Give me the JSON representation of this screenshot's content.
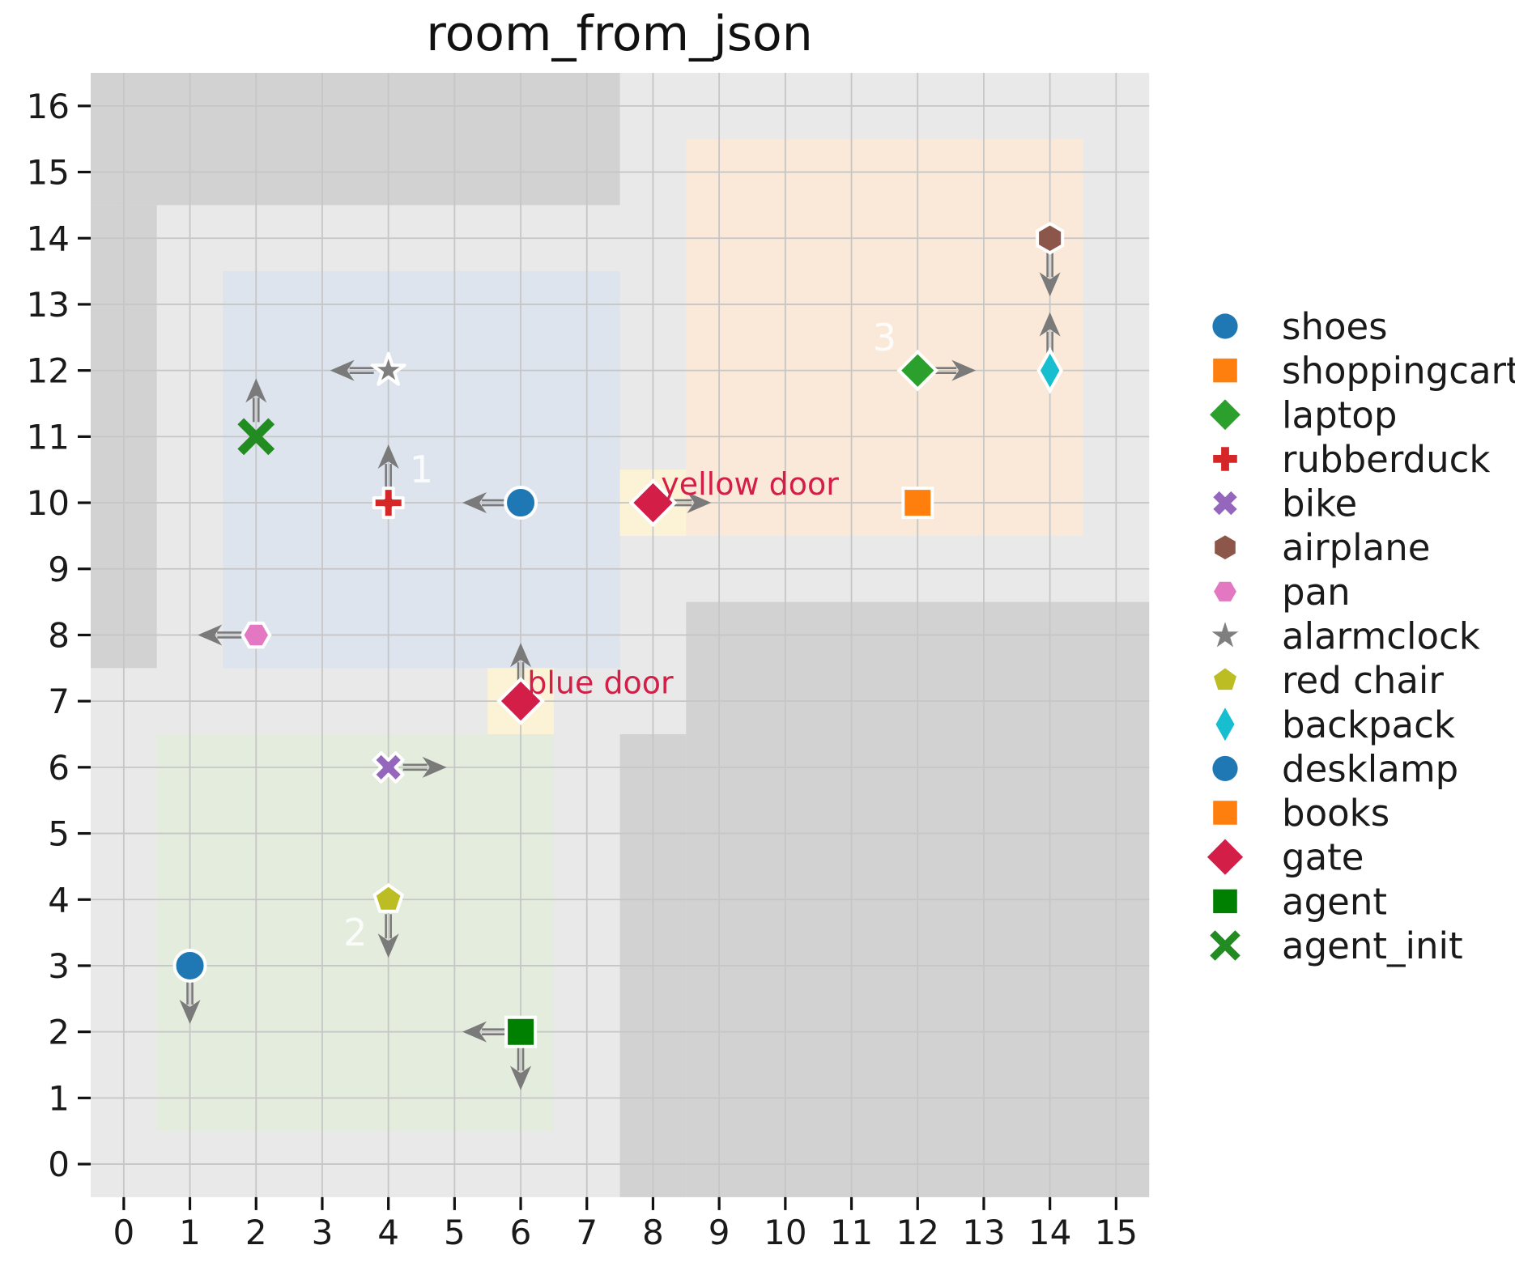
{
  "chart_data": {
    "type": "scatter",
    "title": "room_from_json",
    "xlim": [
      -0.5,
      15.5
    ],
    "ylim": [
      -0.5,
      16.5
    ],
    "xticks": [
      0,
      1,
      2,
      3,
      4,
      5,
      6,
      7,
      8,
      9,
      10,
      11,
      12,
      13,
      14,
      15
    ],
    "yticks": [
      0,
      1,
      2,
      3,
      4,
      5,
      6,
      7,
      8,
      9,
      10,
      11,
      12,
      13,
      14,
      15,
      16
    ],
    "grid": true,
    "legend_position": "right",
    "colors": {
      "background": "#e9e9e9",
      "wall": "#d2d2d2",
      "grid": "#c6c6c6",
      "tick": "#111111",
      "arrow": "#7a7a7a",
      "room_label": "#ffffff",
      "marker_edge": "#ffffff"
    },
    "walls": [
      {
        "x0": -0.5,
        "y0": 14.5,
        "x1": 7.5,
        "y1": 16.5
      },
      {
        "x0": -0.5,
        "y0": 7.5,
        "x1": 0.5,
        "y1": 14.5
      },
      {
        "x0": 8.5,
        "y0": -0.5,
        "x1": 15.5,
        "y1": 8.5
      },
      {
        "x0": 7.5,
        "y0": -0.5,
        "x1": 8.5,
        "y1": 6.5
      }
    ],
    "rooms": [
      {
        "id": "1",
        "label": "1",
        "x0": 1.5,
        "y0": 7.5,
        "x1": 7.5,
        "y1": 13.5,
        "color": "#dde4ee",
        "label_x": 4.5,
        "label_y": 10.5
      },
      {
        "id": "2",
        "label": "2",
        "x0": 0.5,
        "y0": 0.5,
        "x1": 6.5,
        "y1": 6.5,
        "color": "#e3ecdd",
        "label_x": 3.5,
        "label_y": 3.5
      },
      {
        "id": "3",
        "label": "3",
        "x0": 8.5,
        "y0": 9.5,
        "x1": 14.5,
        "y1": 15.5,
        "color": "#fae9d8",
        "label_x": 11.5,
        "label_y": 12.5
      }
    ],
    "door_cells": [
      {
        "x0": 7.5,
        "y0": 9.5,
        "x1": 8.5,
        "y1": 10.5,
        "color": "#fcf3d7"
      },
      {
        "x0": 5.5,
        "y0": 6.5,
        "x1": 6.5,
        "y1": 7.5,
        "color": "#fcf3d7"
      }
    ],
    "door_labels": [
      {
        "text": "yellow door",
        "x": 8.12,
        "y": 10.28,
        "color": "#d31f48"
      },
      {
        "text": "blue door",
        "x": 6.1,
        "y": 7.28,
        "color": "#d31f48"
      }
    ],
    "points": [
      {
        "name": "alarmclock",
        "x": 4,
        "y": 12,
        "marker": "star",
        "color": "#7f7f7f",
        "arrows": [
          "left"
        ]
      },
      {
        "name": "agent_init",
        "x": 2,
        "y": 11,
        "marker": "x-stroke",
        "color": "#228B22",
        "arrows": [
          "up"
        ]
      },
      {
        "name": "rubberduck",
        "x": 4,
        "y": 10,
        "marker": "plus",
        "color": "#d62728",
        "arrows": [
          "up"
        ]
      },
      {
        "name": "shoes",
        "x": 6,
        "y": 10,
        "marker": "circle",
        "color": "#1f77b4",
        "arrows": [
          "left"
        ]
      },
      {
        "name": "gate-yellow-door",
        "x": 8,
        "y": 10,
        "marker": "diamond-large",
        "color": "#d31f48",
        "arrows": [
          "right"
        ]
      },
      {
        "name": "books",
        "x": 12,
        "y": 10,
        "marker": "square",
        "color": "#ff7f0e",
        "arrows": []
      },
      {
        "name": "laptop",
        "x": 12,
        "y": 12,
        "marker": "diamond",
        "color": "#2ca02c",
        "arrows": [
          "right"
        ]
      },
      {
        "name": "backpack",
        "x": 14,
        "y": 12,
        "marker": "thin-diamond",
        "color": "#17becf",
        "arrows": [
          "up"
        ]
      },
      {
        "name": "airplane",
        "x": 14,
        "y": 14,
        "marker": "hexagon-pointy",
        "color": "#8c564b",
        "arrows": [
          "down"
        ]
      },
      {
        "name": "pan",
        "x": 2,
        "y": 8,
        "marker": "hexagon-flat",
        "color": "#e377c2",
        "arrows": [
          "left"
        ]
      },
      {
        "name": "gate-blue-door",
        "x": 6,
        "y": 7,
        "marker": "diamond-large",
        "color": "#d31f48",
        "arrows": [
          "up"
        ]
      },
      {
        "name": "bike",
        "x": 4,
        "y": 6,
        "marker": "x",
        "color": "#9467bd",
        "arrows": [
          "right"
        ]
      },
      {
        "name": "red chair",
        "x": 4,
        "y": 4,
        "marker": "pentagon",
        "color": "#bcbd22",
        "arrows": [
          "down"
        ]
      },
      {
        "name": "desklamp",
        "x": 1,
        "y": 3,
        "marker": "circle",
        "color": "#1f77b4",
        "arrows": [
          "down"
        ]
      },
      {
        "name": "agent",
        "x": 6,
        "y": 2,
        "marker": "square",
        "color": "#008000",
        "arrows": [
          "left",
          "down"
        ]
      }
    ],
    "legend": {
      "entries": [
        {
          "label": "shoes",
          "marker": "circle",
          "color": "#1f77b4"
        },
        {
          "label": "shoppingcart",
          "marker": "square",
          "color": "#ff7f0e"
        },
        {
          "label": "laptop",
          "marker": "diamond",
          "color": "#2ca02c"
        },
        {
          "label": "rubberduck",
          "marker": "plus",
          "color": "#d62728"
        },
        {
          "label": "bike",
          "marker": "x",
          "color": "#9467bd"
        },
        {
          "label": "airplane",
          "marker": "hexagon-pointy",
          "color": "#8c564b"
        },
        {
          "label": "pan",
          "marker": "hexagon-flat",
          "color": "#e377c2"
        },
        {
          "label": "alarmclock",
          "marker": "star",
          "color": "#7f7f7f"
        },
        {
          "label": "red chair",
          "marker": "pentagon",
          "color": "#bcbd22"
        },
        {
          "label": "backpack",
          "marker": "thin-diamond",
          "color": "#17becf"
        },
        {
          "label": "desklamp",
          "marker": "circle",
          "color": "#1f77b4"
        },
        {
          "label": "books",
          "marker": "square",
          "color": "#ff7f0e"
        },
        {
          "label": "gate",
          "marker": "diamond-large",
          "color": "#d31f48"
        },
        {
          "label": "agent",
          "marker": "square",
          "color": "#008000"
        },
        {
          "label": "agent_init",
          "marker": "x-stroke",
          "color": "#228B22"
        }
      ]
    }
  }
}
